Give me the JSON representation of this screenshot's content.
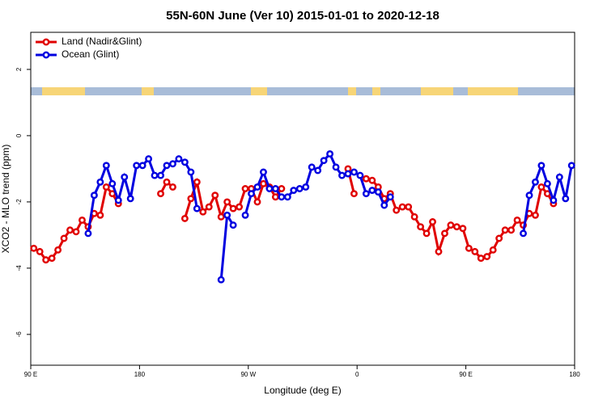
{
  "chart_data": {
    "type": "line",
    "title": "55N-60N June (Ver 10)   2015-01-01 to 2020-12-18",
    "xlabel": "Longitude (deg E)",
    "ylabel": "XCO2 - MLO trend (ppm)",
    "x": [
      92.5,
      97.5,
      102.5,
      107.5,
      112.5,
      117.5,
      122.5,
      127.5,
      132.5,
      137.5,
      142.5,
      147.5,
      152.5,
      157.5,
      162.5,
      167.5,
      172.5,
      177.5,
      182.5,
      187.5,
      192.5,
      197.5,
      202.5,
      207.5,
      212.5,
      217.5,
      222.5,
      227.5,
      232.5,
      237.5,
      242.5,
      247.5,
      252.5,
      257.5,
      262.5,
      267.5,
      272.5,
      277.5,
      282.5,
      287.5,
      292.5,
      297.5,
      302.5,
      307.5,
      312.5,
      317.5,
      322.5,
      327.5,
      332.5,
      337.5,
      342.5,
      347.5,
      352.5,
      357.5,
      362.5,
      367.5,
      372.5,
      377.5,
      382.5,
      387.5,
      392.5,
      397.5,
      402.5,
      407.5,
      412.5,
      417.5,
      422.5,
      427.5,
      432.5,
      437.5,
      442.5,
      447.5,
      452.5,
      457.5,
      462.5,
      467.5,
      472.5,
      477.5,
      482.5,
      487.5,
      492.5,
      497.5,
      502.5,
      507.5,
      512.5,
      517.5,
      522.5,
      527.5,
      532.5,
      537.5
    ],
    "series": [
      {
        "name": "Land (Nadir&Glint)",
        "color": "#e00000",
        "values": [
          -3.4,
          -3.5,
          -3.75,
          -3.7,
          -3.45,
          -3.1,
          -2.85,
          -2.9,
          -2.55,
          -2.75,
          -2.35,
          -2.4,
          -1.55,
          -1.75,
          -2.05,
          null,
          null,
          null,
          null,
          null,
          null,
          -1.75,
          -1.4,
          -1.55,
          null,
          -2.5,
          -1.9,
          -1.4,
          -2.3,
          -2.15,
          -1.8,
          -2.45,
          -2.0,
          -2.2,
          -2.15,
          -1.6,
          -1.6,
          -2.0,
          -1.45,
          -1.55,
          -1.85,
          -1.6,
          null,
          null,
          null,
          null,
          null,
          null,
          null,
          null,
          null,
          null,
          -1.0,
          -1.75,
          null,
          -1.3,
          -1.35,
          -1.55,
          -1.9,
          -1.75,
          -2.25,
          -2.15,
          -2.15,
          -2.45,
          -2.75,
          -2.95,
          -2.6,
          -3.5,
          -2.95,
          -2.7,
          -2.75,
          -2.8,
          -3.4,
          -3.5,
          -3.7,
          -3.65,
          -3.45,
          -3.1,
          -2.85,
          -2.85,
          -2.55,
          -2.7,
          -2.35,
          -2.4,
          -1.55,
          -1.75,
          -2.05,
          null,
          null,
          null
        ]
      },
      {
        "name": "Ocean (Glint)",
        "color": "#0000e0",
        "values": [
          null,
          null,
          null,
          null,
          null,
          null,
          null,
          null,
          null,
          -2.95,
          -1.8,
          -1.4,
          -0.9,
          -1.45,
          -1.95,
          -1.25,
          -1.9,
          -0.9,
          -0.9,
          -0.7,
          -1.2,
          -1.2,
          -0.9,
          -0.85,
          -0.7,
          -0.8,
          -1.1,
          -2.2,
          null,
          null,
          null,
          -4.35,
          -2.4,
          -2.7,
          null,
          -2.4,
          -1.75,
          -1.55,
          -1.1,
          -1.6,
          -1.6,
          -1.85,
          -1.85,
          -1.65,
          -1.6,
          -1.55,
          -0.95,
          -1.05,
          -0.75,
          -0.55,
          -0.95,
          -1.2,
          -1.15,
          -1.1,
          -1.2,
          -1.75,
          -1.65,
          -1.7,
          -2.1,
          -1.85,
          null,
          null,
          null,
          null,
          null,
          null,
          null,
          null,
          null,
          null,
          null,
          null,
          null,
          null,
          null,
          null,
          null,
          null,
          null,
          null,
          null,
          -2.95,
          -1.8,
          -1.4,
          -0.9,
          -1.45,
          -1.95,
          -1.25,
          -1.9,
          -0.9
        ]
      }
    ],
    "xlim": [
      90,
      540
    ],
    "xticks": [
      {
        "value": 90,
        "label": "90 E"
      },
      180,
      {
        "value": 270,
        "label": "90 W"
      },
      {
        "value": 360,
        "label": "0"
      },
      {
        "value": 450,
        "label": "90 E"
      },
      {
        "value": 540,
        "label": "180"
      }
    ],
    "ylim": [
      -6.93,
      3.12
    ],
    "yticks": [
      -6,
      -4,
      -2,
      0,
      2
    ],
    "legend": "top-left"
  }
}
